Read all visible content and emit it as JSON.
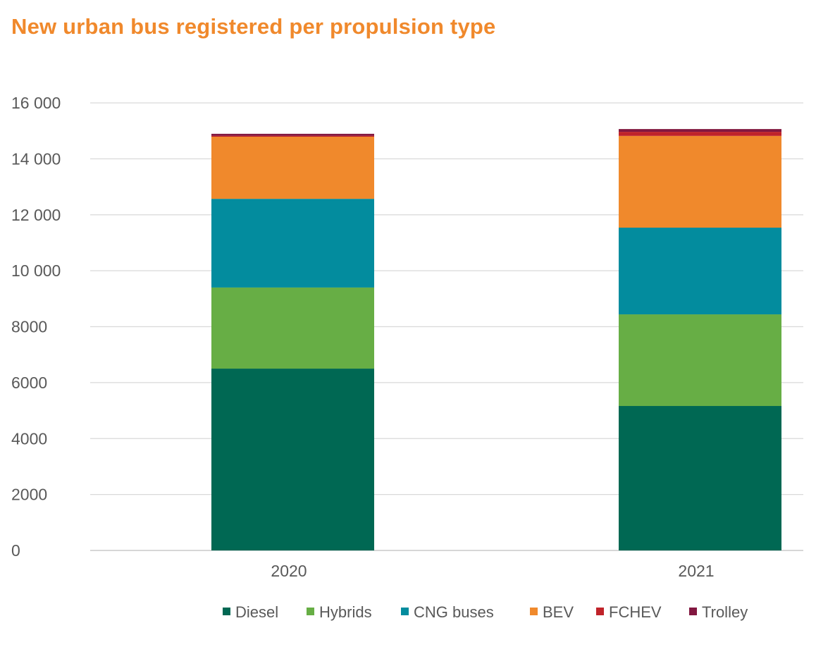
{
  "chart_data": {
    "type": "bar",
    "stacked": true,
    "title": "New urban bus registered per propulsion type",
    "xlabel": "",
    "ylabel": "",
    "categories": [
      "2020",
      "2021"
    ],
    "ylim": [
      0,
      16000
    ],
    "yticks": [
      0,
      2000,
      4000,
      6000,
      8000,
      10000,
      12000,
      14000,
      16000
    ],
    "ytick_labels": [
      "0",
      "2000",
      "4000",
      "6000",
      "8000",
      "10 000",
      "12 000",
      "14 000",
      "16 000"
    ],
    "grid": true,
    "legend_position": "bottom",
    "series": [
      {
        "name": "Diesel",
        "color": "#006853",
        "values": [
          6500,
          5165
        ]
      },
      {
        "name": "Hybrids",
        "color": "#67AE45",
        "values": [
          2900,
          3275
        ]
      },
      {
        "name": "CNG buses",
        "color": "#038C9E",
        "values": [
          3170,
          3100
        ]
      },
      {
        "name": "BEV",
        "color": "#F0892C",
        "values": [
          2220,
          3280
        ]
      },
      {
        "name": "FCHEV",
        "color": "#C0232A",
        "values": [
          35,
          145
        ]
      },
      {
        "name": "Trolley",
        "color": "#821740",
        "values": [
          70,
          100
        ]
      }
    ]
  }
}
